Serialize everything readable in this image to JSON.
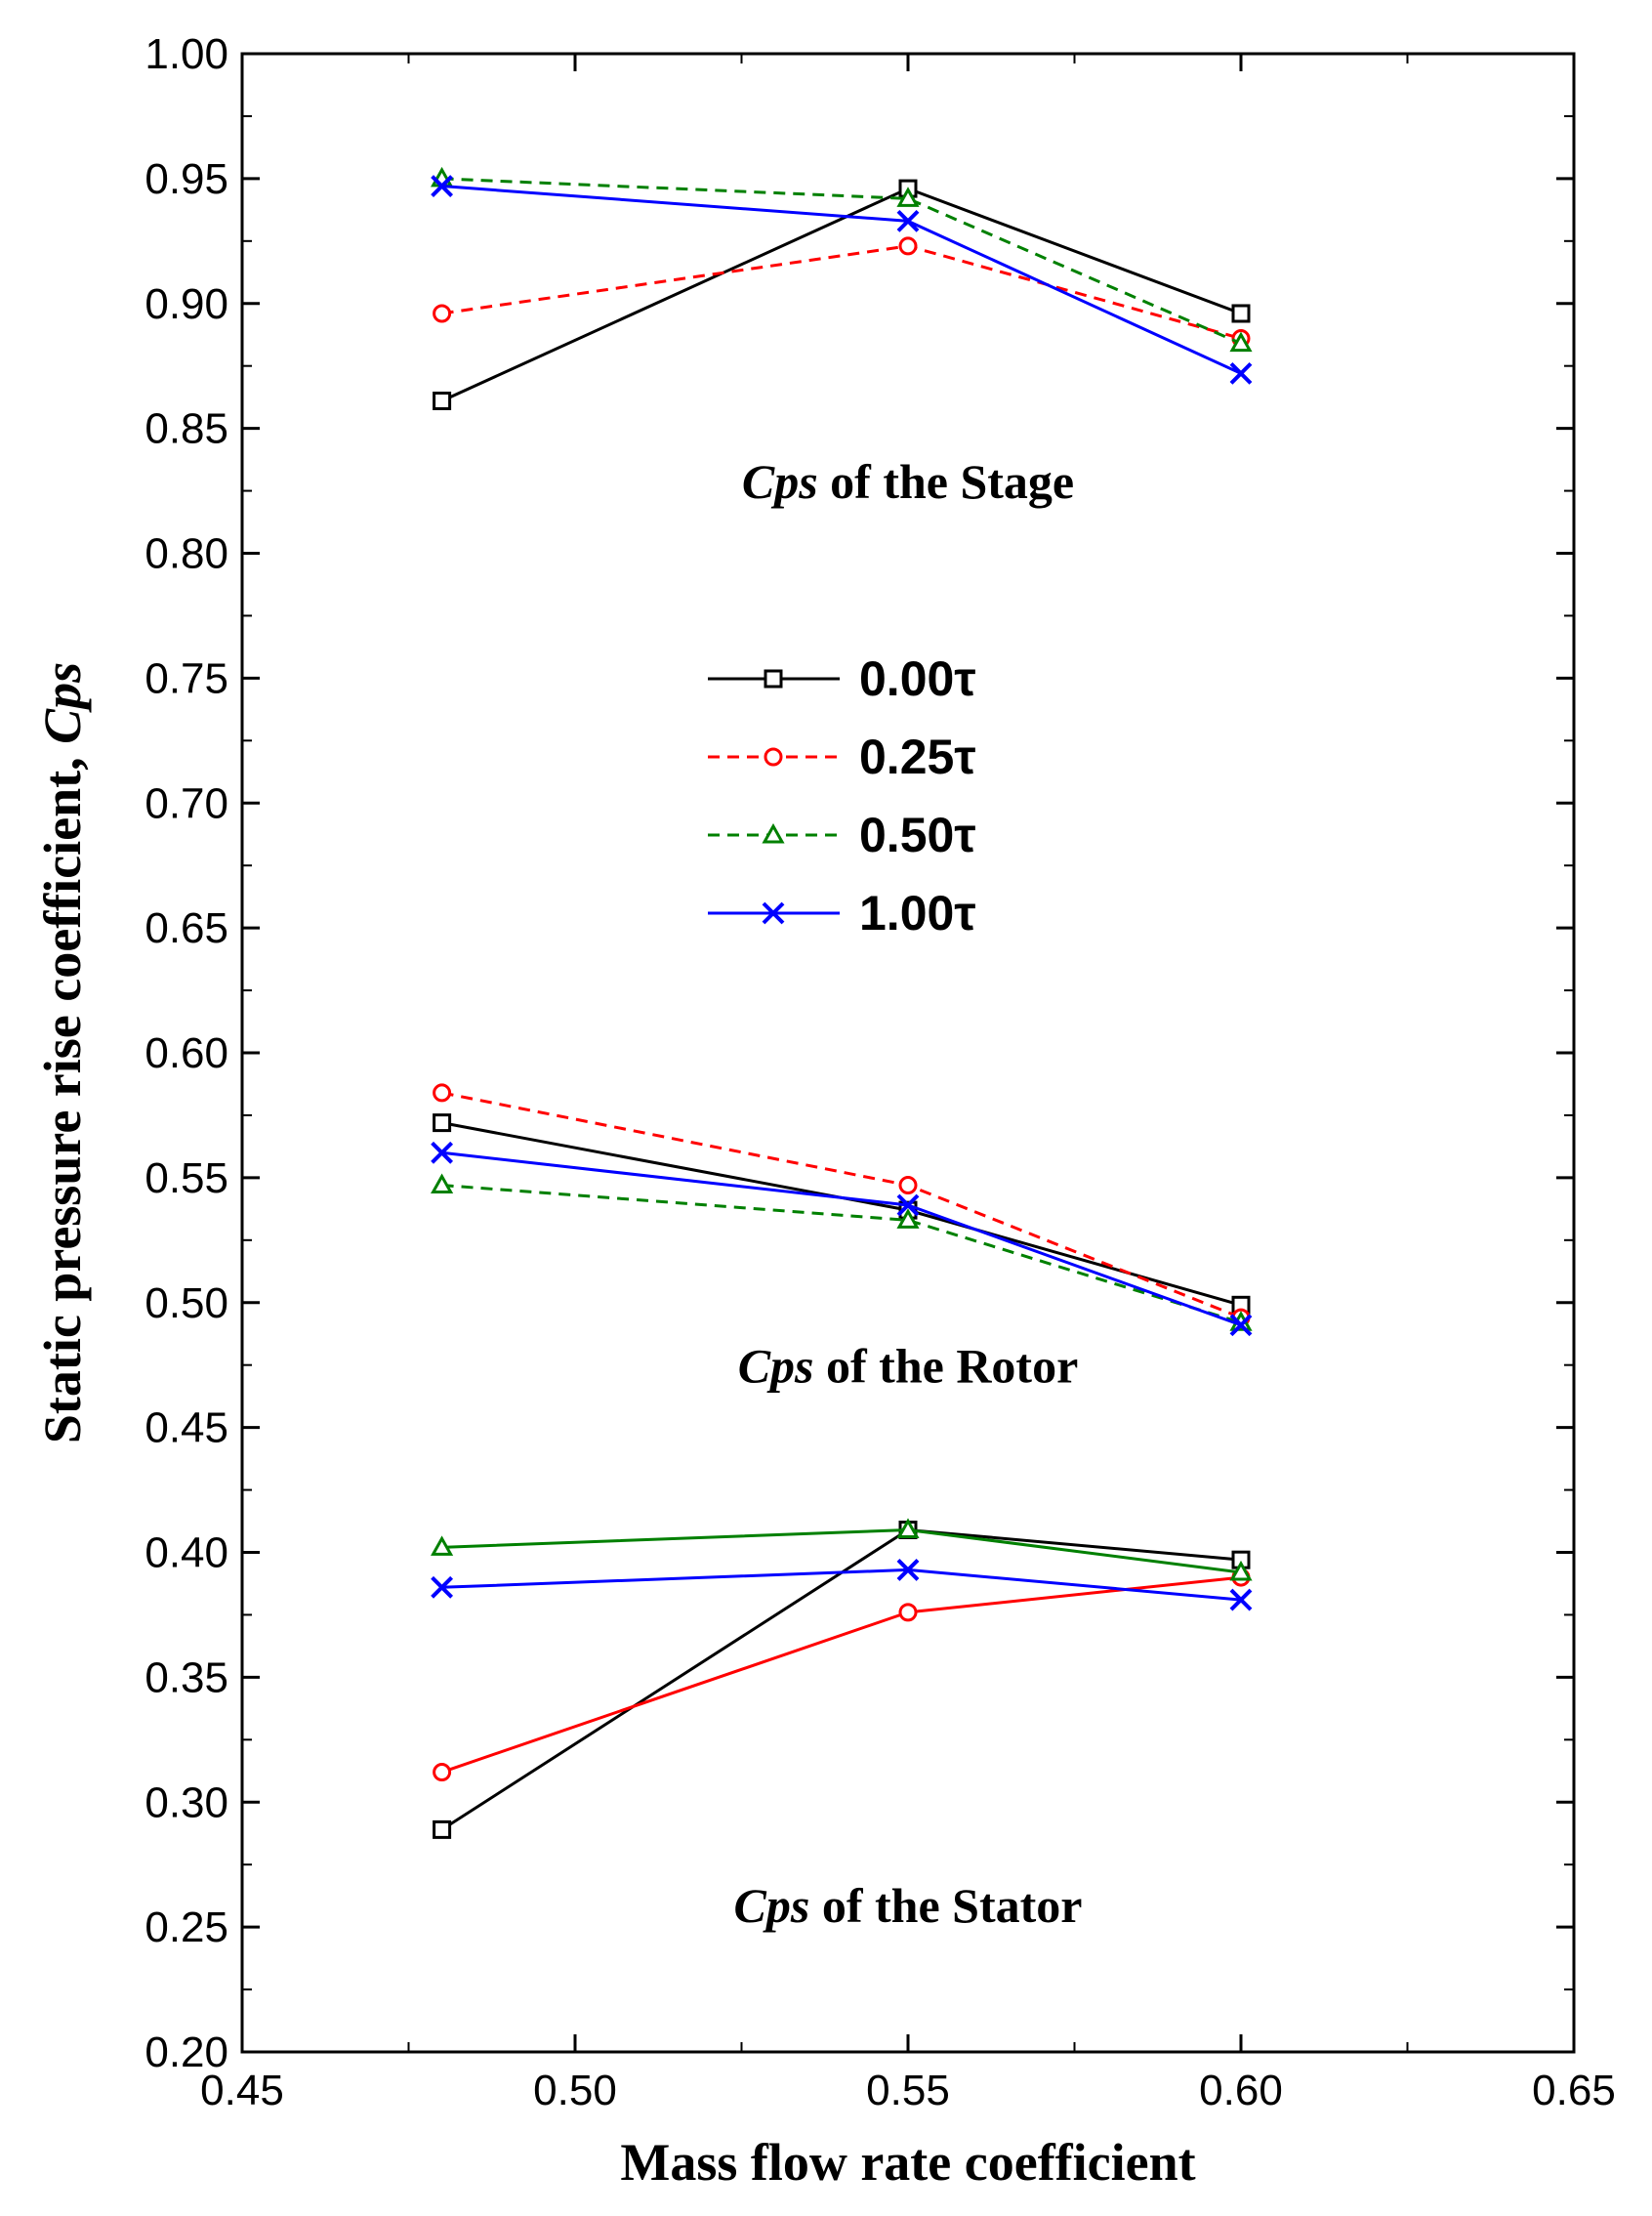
{
  "chart_data": {
    "type": "line",
    "xlabel": "Mass flow rate coefficient",
    "ylabel_prefix": "Static pressure rise coefficient, ",
    "ylabel_symbol": "Cps",
    "xlim": [
      0.45,
      0.65
    ],
    "ylim": [
      0.2,
      1.0
    ],
    "x_ticks": [
      "0.45",
      "0.50",
      "0.55",
      "0.60",
      "0.65"
    ],
    "y_ticks": [
      "0.20",
      "0.25",
      "0.30",
      "0.35",
      "0.40",
      "0.45",
      "0.50",
      "0.55",
      "0.60",
      "0.65",
      "0.70",
      "0.75",
      "0.80",
      "0.85",
      "0.90",
      "0.95",
      "1.00"
    ],
    "x": [
      0.48,
      0.55,
      0.6
    ],
    "groups": [
      {
        "name": "Stage",
        "label_symbol": "Cps",
        "label_text": " of the Stage",
        "series": [
          {
            "name": "0.00τ",
            "values": [
              0.861,
              0.946,
              0.896
            ]
          },
          {
            "name": "0.25τ",
            "values": [
              0.896,
              0.923,
              0.886
            ]
          },
          {
            "name": "0.50τ",
            "values": [
              0.95,
              0.942,
              0.884
            ]
          },
          {
            "name": "1.00τ",
            "values": [
              0.947,
              0.933,
              0.872
            ]
          }
        ]
      },
      {
        "name": "Rotor",
        "label_symbol": "Cps",
        "label_text": " of the Rotor",
        "series": [
          {
            "name": "0.00τ",
            "values": [
              0.572,
              0.537,
              0.499
            ]
          },
          {
            "name": "0.25τ",
            "values": [
              0.584,
              0.547,
              0.494
            ]
          },
          {
            "name": "0.50τ",
            "values": [
              0.547,
              0.533,
              0.492
            ]
          },
          {
            "name": "1.00τ",
            "values": [
              0.56,
              0.539,
              0.491
            ]
          }
        ]
      },
      {
        "name": "Stator",
        "label_symbol": "Cps",
        "label_text": " of the Stator",
        "series": [
          {
            "name": "0.00τ",
            "values": [
              0.289,
              0.409,
              0.397
            ]
          },
          {
            "name": "0.25τ",
            "values": [
              0.312,
              0.376,
              0.39
            ]
          },
          {
            "name": "0.50τ",
            "values": [
              0.402,
              0.409,
              0.392
            ]
          },
          {
            "name": "1.00τ",
            "values": [
              0.386,
              0.393,
              0.381
            ]
          }
        ]
      }
    ],
    "legend": [
      {
        "name": "0.00τ",
        "color": "#000000",
        "marker": "square",
        "dash": "solid"
      },
      {
        "name": "0.25τ",
        "color": "#ff0000",
        "marker": "circle",
        "dash": "dashed"
      },
      {
        "name": "0.50τ",
        "color": "#008000",
        "marker": "triangle",
        "dash": "dashed"
      },
      {
        "name": "1.00τ",
        "color": "#0000ff",
        "marker": "x",
        "dash": "solid"
      }
    ],
    "legend_position": "center"
  }
}
